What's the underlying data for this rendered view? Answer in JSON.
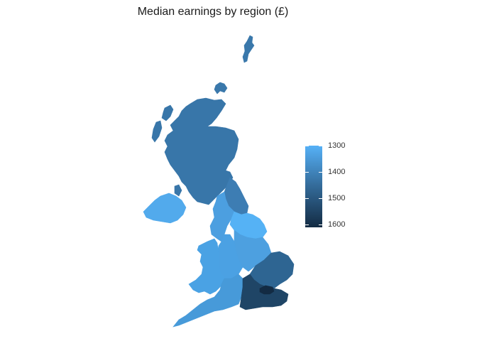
{
  "title": "Median earnings by region (£)",
  "legend": {
    "ticks": [
      {
        "label": "1300",
        "value": 1300
      },
      {
        "label": "1400",
        "value": 1400
      },
      {
        "label": "1500",
        "value": 1500
      },
      {
        "label": "1600",
        "value": 1600
      }
    ],
    "range": [
      1300,
      1610
    ],
    "colors": {
      "low": "#56b1f7",
      "high": "#132b43"
    }
  },
  "map": {
    "type": "choropleth",
    "regions": [
      {
        "id": "shetland",
        "name": "Shetland",
        "color": "#3a78ab"
      },
      {
        "id": "orkney",
        "name": "Orkney",
        "color": "#3a78ab"
      },
      {
        "id": "scotland",
        "name": "Scotland",
        "color": "#3876a9"
      },
      {
        "id": "northern-ireland",
        "name": "Northern Ireland",
        "color": "#52aaec"
      },
      {
        "id": "north-east",
        "name": "North East",
        "color": "#3d7db3"
      },
      {
        "id": "north-west",
        "name": "North West",
        "color": "#4c9fe0"
      },
      {
        "id": "yorkshire",
        "name": "Yorkshire and the Humber",
        "color": "#55b2f5"
      },
      {
        "id": "east-midlands",
        "name": "East Midlands",
        "color": "#4da0e0"
      },
      {
        "id": "west-midlands",
        "name": "West Midlands",
        "color": "#4ba1e3"
      },
      {
        "id": "wales",
        "name": "Wales",
        "color": "#4aa2e4"
      },
      {
        "id": "east-of-england",
        "name": "East of England",
        "color": "#2e6592"
      },
      {
        "id": "south-west",
        "name": "South West",
        "color": "#479ad9"
      },
      {
        "id": "south-east",
        "name": "South East",
        "color": "#1f4566"
      },
      {
        "id": "london",
        "name": "London",
        "color": "#132b43"
      }
    ]
  }
}
